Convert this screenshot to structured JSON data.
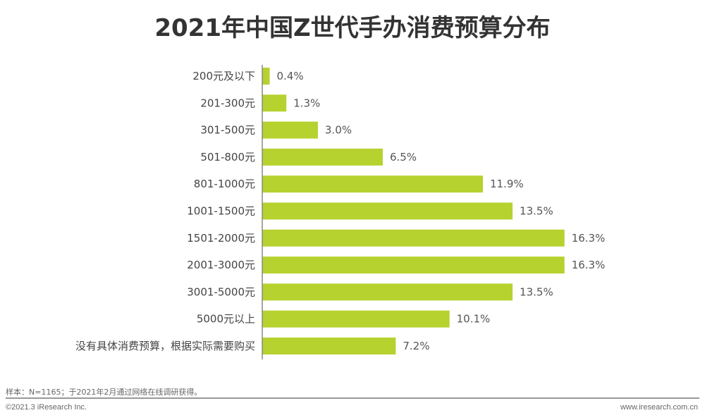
{
  "chart_data": {
    "type": "bar",
    "orientation": "horizontal",
    "title": "2021年中国Z世代手办消费预算分布",
    "categories": [
      "200元及以下",
      "201-300元",
      "301-500元",
      "501-800元",
      "801-1000元",
      "1001-1500元",
      "1501-2000元",
      "2001-3000元",
      "3001-5000元",
      "5000元以上",
      "没有具体消费预算，根据实际需要购买"
    ],
    "values": [
      0.4,
      1.3,
      3.0,
      6.5,
      11.9,
      13.5,
      16.3,
      16.3,
      13.5,
      10.1,
      7.2
    ],
    "data_labels": [
      "0.4%",
      "1.3%",
      "3.0%",
      "6.5%",
      "11.9%",
      "13.5%",
      "16.3%",
      "16.3%",
      "13.5%",
      "10.1%",
      "7.2%"
    ],
    "color": "#b5d22e",
    "grid": false
  },
  "footer": {
    "note": "样本：N=1165；于2021年2月通过网络在线调研获得。",
    "copyright": "©2021.3 iResearch Inc.",
    "site": "www.iresearch.com.cn"
  }
}
